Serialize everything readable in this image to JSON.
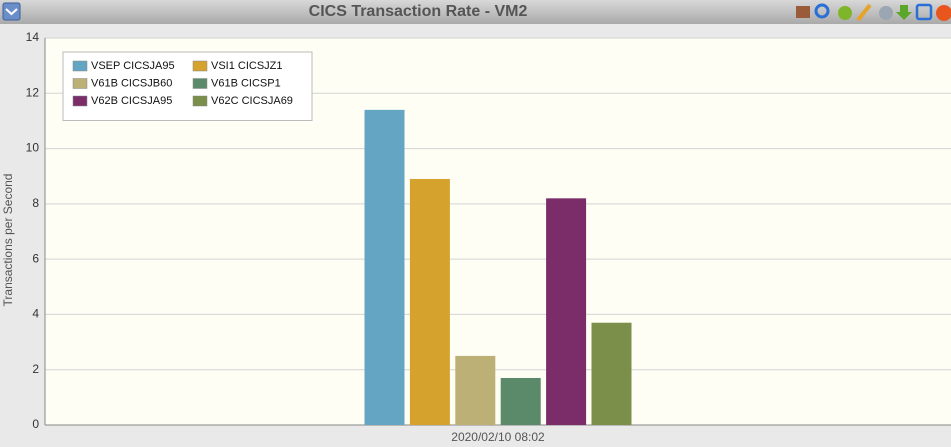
{
  "chart_data": {
    "type": "bar",
    "title": "CICS Transaction Rate - VM2",
    "ylabel": "Transactions per Second",
    "categories": [
      "2020/02/10 08:02"
    ],
    "series": [
      {
        "name": "VSEP CICSJA95",
        "color": "#64a5c4",
        "values": [
          11.4
        ]
      },
      {
        "name": "VSI1 CICSJZ1",
        "color": "#d6a22e",
        "values": [
          8.9
        ]
      },
      {
        "name": "V61B CICSJB60",
        "color": "#bdb076",
        "values": [
          2.5
        ]
      },
      {
        "name": "V61B CICSP1",
        "color": "#5a8a6a",
        "values": [
          1.7
        ]
      },
      {
        "name": "V62B CICSJA95",
        "color": "#7b2d6a",
        "values": [
          8.2
        ]
      },
      {
        "name": "V62C CICSJA69",
        "color": "#7b8f4a",
        "values": [
          3.7
        ]
      }
    ],
    "ylim": [
      0,
      14
    ],
    "yticks": [
      0,
      2,
      4,
      6,
      8,
      10,
      12,
      14
    ],
    "grid": true,
    "legend_position": "upper-left"
  }
}
